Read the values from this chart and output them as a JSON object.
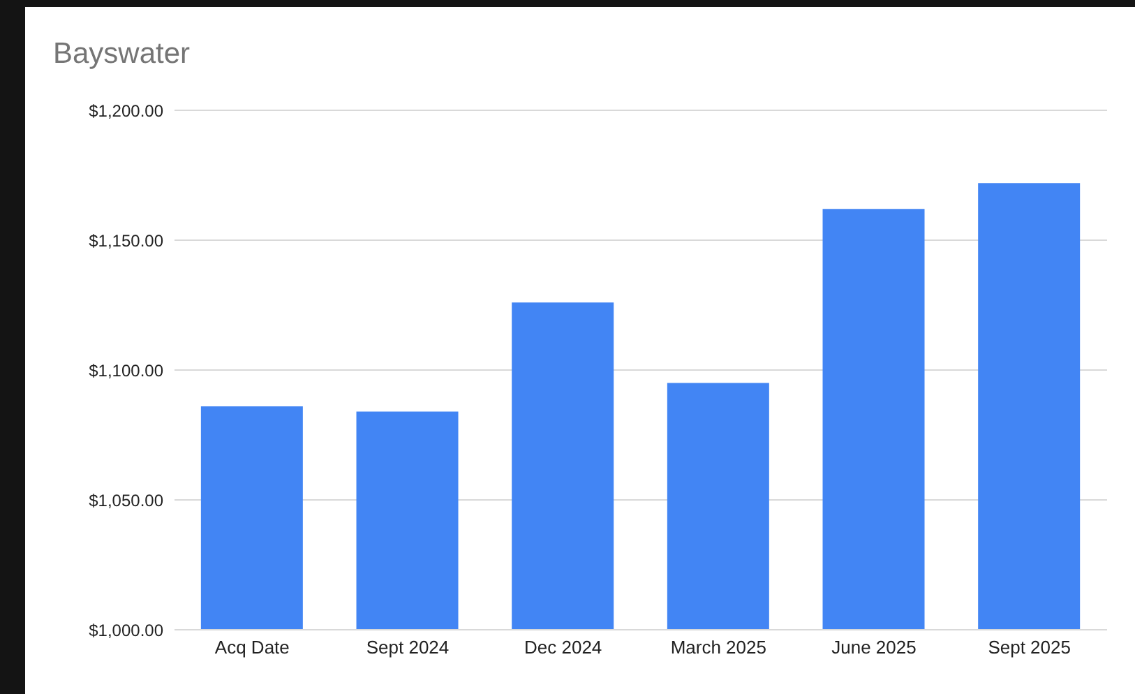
{
  "chart_data": {
    "type": "bar",
    "title": "Bayswater",
    "categories": [
      "Acq Date",
      "Sept 2024",
      "Dec 2024",
      "March 2025",
      "June 2025",
      "Sept 2025"
    ],
    "values": [
      1086,
      1084,
      1126,
      1095,
      1162,
      1172
    ],
    "color": "#4285f4",
    "ylim": [
      1000,
      1200
    ],
    "yticks": [
      {
        "value": 1000,
        "label": "$1,000.00"
      },
      {
        "value": 1050,
        "label": "$1,050.00"
      },
      {
        "value": 1100,
        "label": "$1,100.00"
      },
      {
        "value": 1150,
        "label": "$1,150.00"
      },
      {
        "value": 1200,
        "label": "$1,200.00"
      }
    ],
    "grid": "y"
  }
}
